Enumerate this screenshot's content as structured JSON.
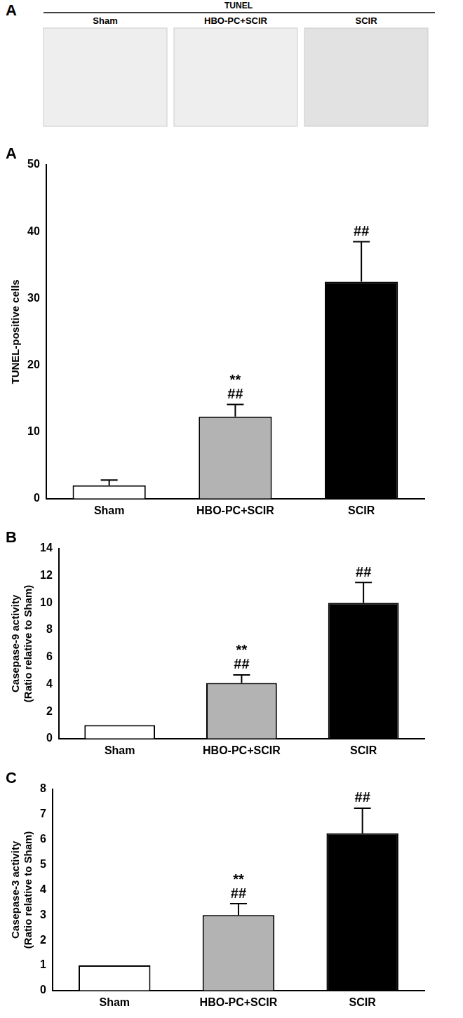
{
  "images": {
    "panel": "A",
    "header": "TUNEL",
    "labels": [
      "Sham",
      "HBO-PC+SCIR",
      "SCIR"
    ]
  },
  "chart_data": [
    {
      "type": "bar",
      "panel": "A",
      "y_label": [
        "TUNEL-positive cells"
      ],
      "categories": [
        "Sham",
        "HBO-PC+SCIR",
        "SCIR"
      ],
      "values": [
        2.0,
        12.3,
        32.5
      ],
      "errors": [
        0.8,
        1.8,
        6.0
      ],
      "colors": [
        "#ffffff",
        "#b3b3b3",
        "#000000"
      ],
      "significance": [
        [],
        [
          "**",
          "##"
        ],
        [
          "##"
        ]
      ],
      "ylim": [
        0,
        50
      ],
      "yticks": [
        0,
        10,
        20,
        30,
        40,
        50
      ],
      "grid": false
    },
    {
      "type": "bar",
      "panel": "B",
      "y_label": [
        "Casepase-9 activity",
        "(Ratio relative to Sham)"
      ],
      "categories": [
        "Sham",
        "HBO-PC+SCIR",
        "SCIR"
      ],
      "values": [
        1.0,
        4.1,
        10.0
      ],
      "errors": [
        0,
        0.6,
        1.5
      ],
      "colors": [
        "#ffffff",
        "#b3b3b3",
        "#000000"
      ],
      "significance": [
        [],
        [
          "**",
          "##"
        ],
        [
          "##"
        ]
      ],
      "ylim": [
        0,
        14
      ],
      "yticks": [
        0,
        2,
        4,
        6,
        8,
        10,
        12,
        14
      ],
      "grid": false
    },
    {
      "type": "bar",
      "panel": "C",
      "y_label": [
        "Casepase-3 activity",
        "(Ratio relative to Sham)"
      ],
      "categories": [
        "Sham",
        "HBO-PC+SCIR",
        "SCIR"
      ],
      "values": [
        1.0,
        3.0,
        6.25
      ],
      "errors": [
        0,
        0.45,
        1.0
      ],
      "colors": [
        "#ffffff",
        "#b3b3b3",
        "#000000"
      ],
      "significance": [
        [],
        [
          "**",
          "##"
        ],
        [
          "##"
        ]
      ],
      "ylim": [
        0,
        8
      ],
      "yticks": [
        0,
        1,
        2,
        3,
        4,
        5,
        6,
        7,
        8
      ],
      "grid": false
    }
  ]
}
